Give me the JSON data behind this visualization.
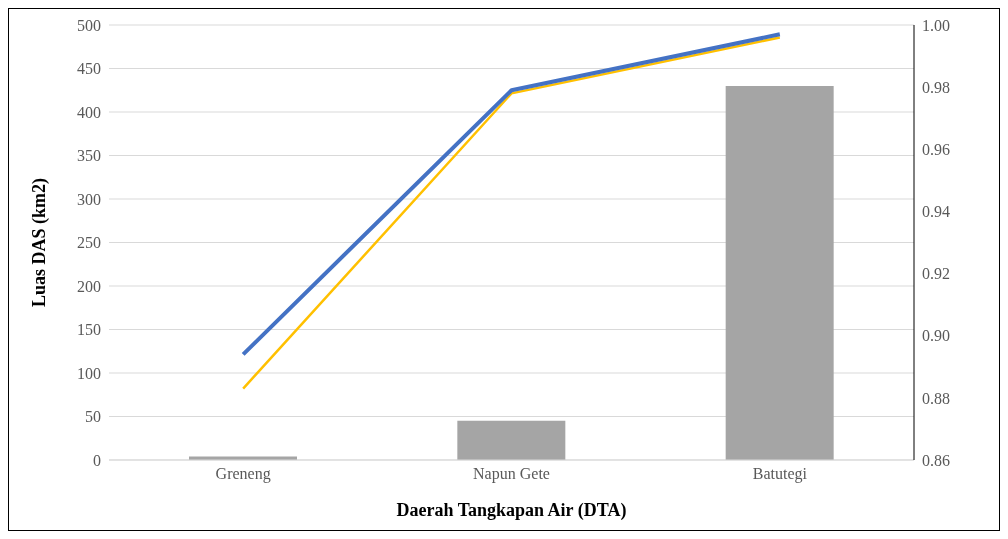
{
  "chart_data": {
    "type": "bar",
    "xlabel": "Daerah Tangkapan Air (DTA)",
    "ylabel": "Luas DAS (km2)",
    "categories": [
      "Greneng",
      "Napun Gete",
      "Batutegi"
    ],
    "series": [
      {
        "color": "#a5a5a5",
        "values": [
          4,
          45,
          430
        ]
      },
      {
        "type": "line",
        "axis": "y2",
        "color": "#ffc000",
        "values": [
          0.883,
          0.978,
          0.996
        ]
      },
      {
        "type": "line",
        "axis": "y2",
        "color": "#4472c4",
        "values": [
          0.894,
          0.979,
          0.997
        ]
      }
    ],
    "ylim": [
      0,
      500
    ],
    "yticks": [
      0,
      50,
      100,
      150,
      200,
      250,
      300,
      350,
      400,
      450,
      500
    ],
    "y2lim": [
      0.86,
      1.0
    ],
    "y2ticks": [
      {
        "value": 0.86,
        "label": "0.86"
      },
      {
        "value": 0.88,
        "label": "0.88"
      },
      {
        "value": 0.9,
        "label": "0.90"
      },
      {
        "value": 0.92,
        "label": "0.92"
      },
      {
        "value": 0.94,
        "label": "0.94"
      },
      {
        "value": 0.96,
        "label": "0.96"
      },
      {
        "value": 0.98,
        "label": "0.98"
      },
      {
        "value": 1.0,
        "label": "1.00"
      }
    ],
    "grid": "y",
    "legend": false,
    "marker": "none"
  }
}
